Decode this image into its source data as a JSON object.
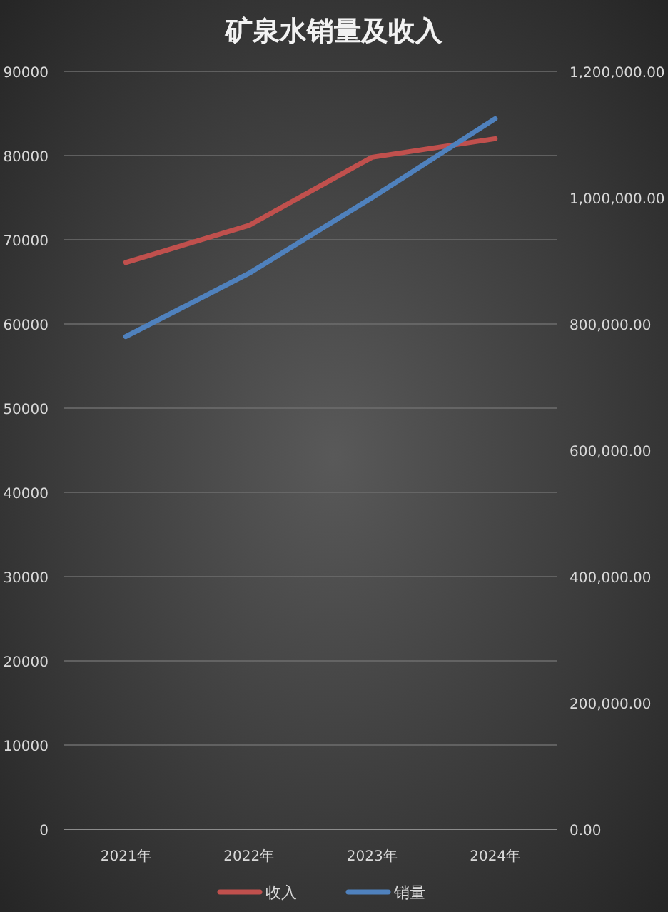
{
  "chart_data": {
    "type": "line",
    "title": "矿泉水销量及收入",
    "categories": [
      "2021年",
      "2022年",
      "2023年",
      "2024年"
    ],
    "series": [
      {
        "name": "收入",
        "color": "#c0504d",
        "values": [
          67300,
          71700,
          79800,
          82000
        ]
      },
      {
        "name": "销量",
        "color": "#4f81bd",
        "values": [
          780000,
          880000,
          1000000,
          1125000
        ],
        "axis": "y2"
      }
    ],
    "ylim": [
      0,
      90000
    ],
    "yticks": [
      0,
      10000,
      20000,
      30000,
      40000,
      50000,
      60000,
      70000,
      80000,
      90000
    ],
    "y2lim": [
      0,
      1200000
    ],
    "y2ticks": [
      {
        "value": 0,
        "label": "0.00"
      },
      {
        "value": 200000,
        "label": "200,000.00"
      },
      {
        "value": 400000,
        "label": "400,000.00"
      },
      {
        "value": 600000,
        "label": "600,000.00"
      },
      {
        "value": 800000,
        "label": "800,000.00"
      },
      {
        "value": 1000000,
        "label": "1,000,000.00"
      },
      {
        "value": 1200000,
        "label": "1,200,000.00"
      }
    ],
    "grid": "y",
    "legend": "bottom"
  }
}
